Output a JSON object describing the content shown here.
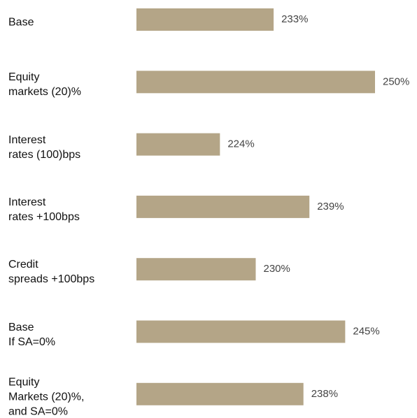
{
  "chart_data": {
    "type": "bar",
    "orientation": "horizontal",
    "categories": [
      "Base",
      "Equity\nmarkets (20)%",
      "Interest\nrates (100)bps",
      "Interest\nrates +100bps",
      "Credit\nspreads +100bps",
      "Base\nIf SA=0%",
      "Equity\nMarkets (20)%,\nand SA=0%"
    ],
    "values": [
      233,
      250,
      224,
      239,
      230,
      245,
      238
    ],
    "value_labels": [
      "233%",
      "250%",
      "224%",
      "239%",
      "230%",
      "245%",
      "238%"
    ],
    "color": "#b4a587",
    "xlim": [
      210,
      250
    ]
  }
}
